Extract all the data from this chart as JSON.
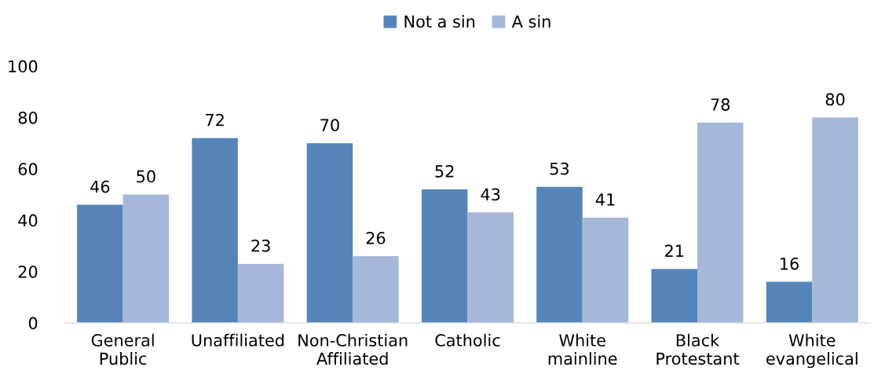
{
  "chart_data": {
    "type": "bar",
    "categories": [
      "General Public",
      "Unaffiliated",
      "Non-Christian Affiliated",
      "Catholic",
      "White mainline",
      "Black Protestant",
      "White evangelical"
    ],
    "series": [
      {
        "name": "Not a sin",
        "color": "#5585b8",
        "values": [
          46,
          72,
          70,
          52,
          53,
          21,
          16
        ]
      },
      {
        "name": "A sin",
        "color": "#a5b8d9",
        "values": [
          50,
          23,
          26,
          43,
          41,
          78,
          80
        ]
      }
    ],
    "ylim": [
      0,
      100
    ],
    "yticks": [
      0,
      20,
      40,
      60,
      80,
      100
    ],
    "grid": false,
    "legend": "top",
    "data_labels": true
  }
}
